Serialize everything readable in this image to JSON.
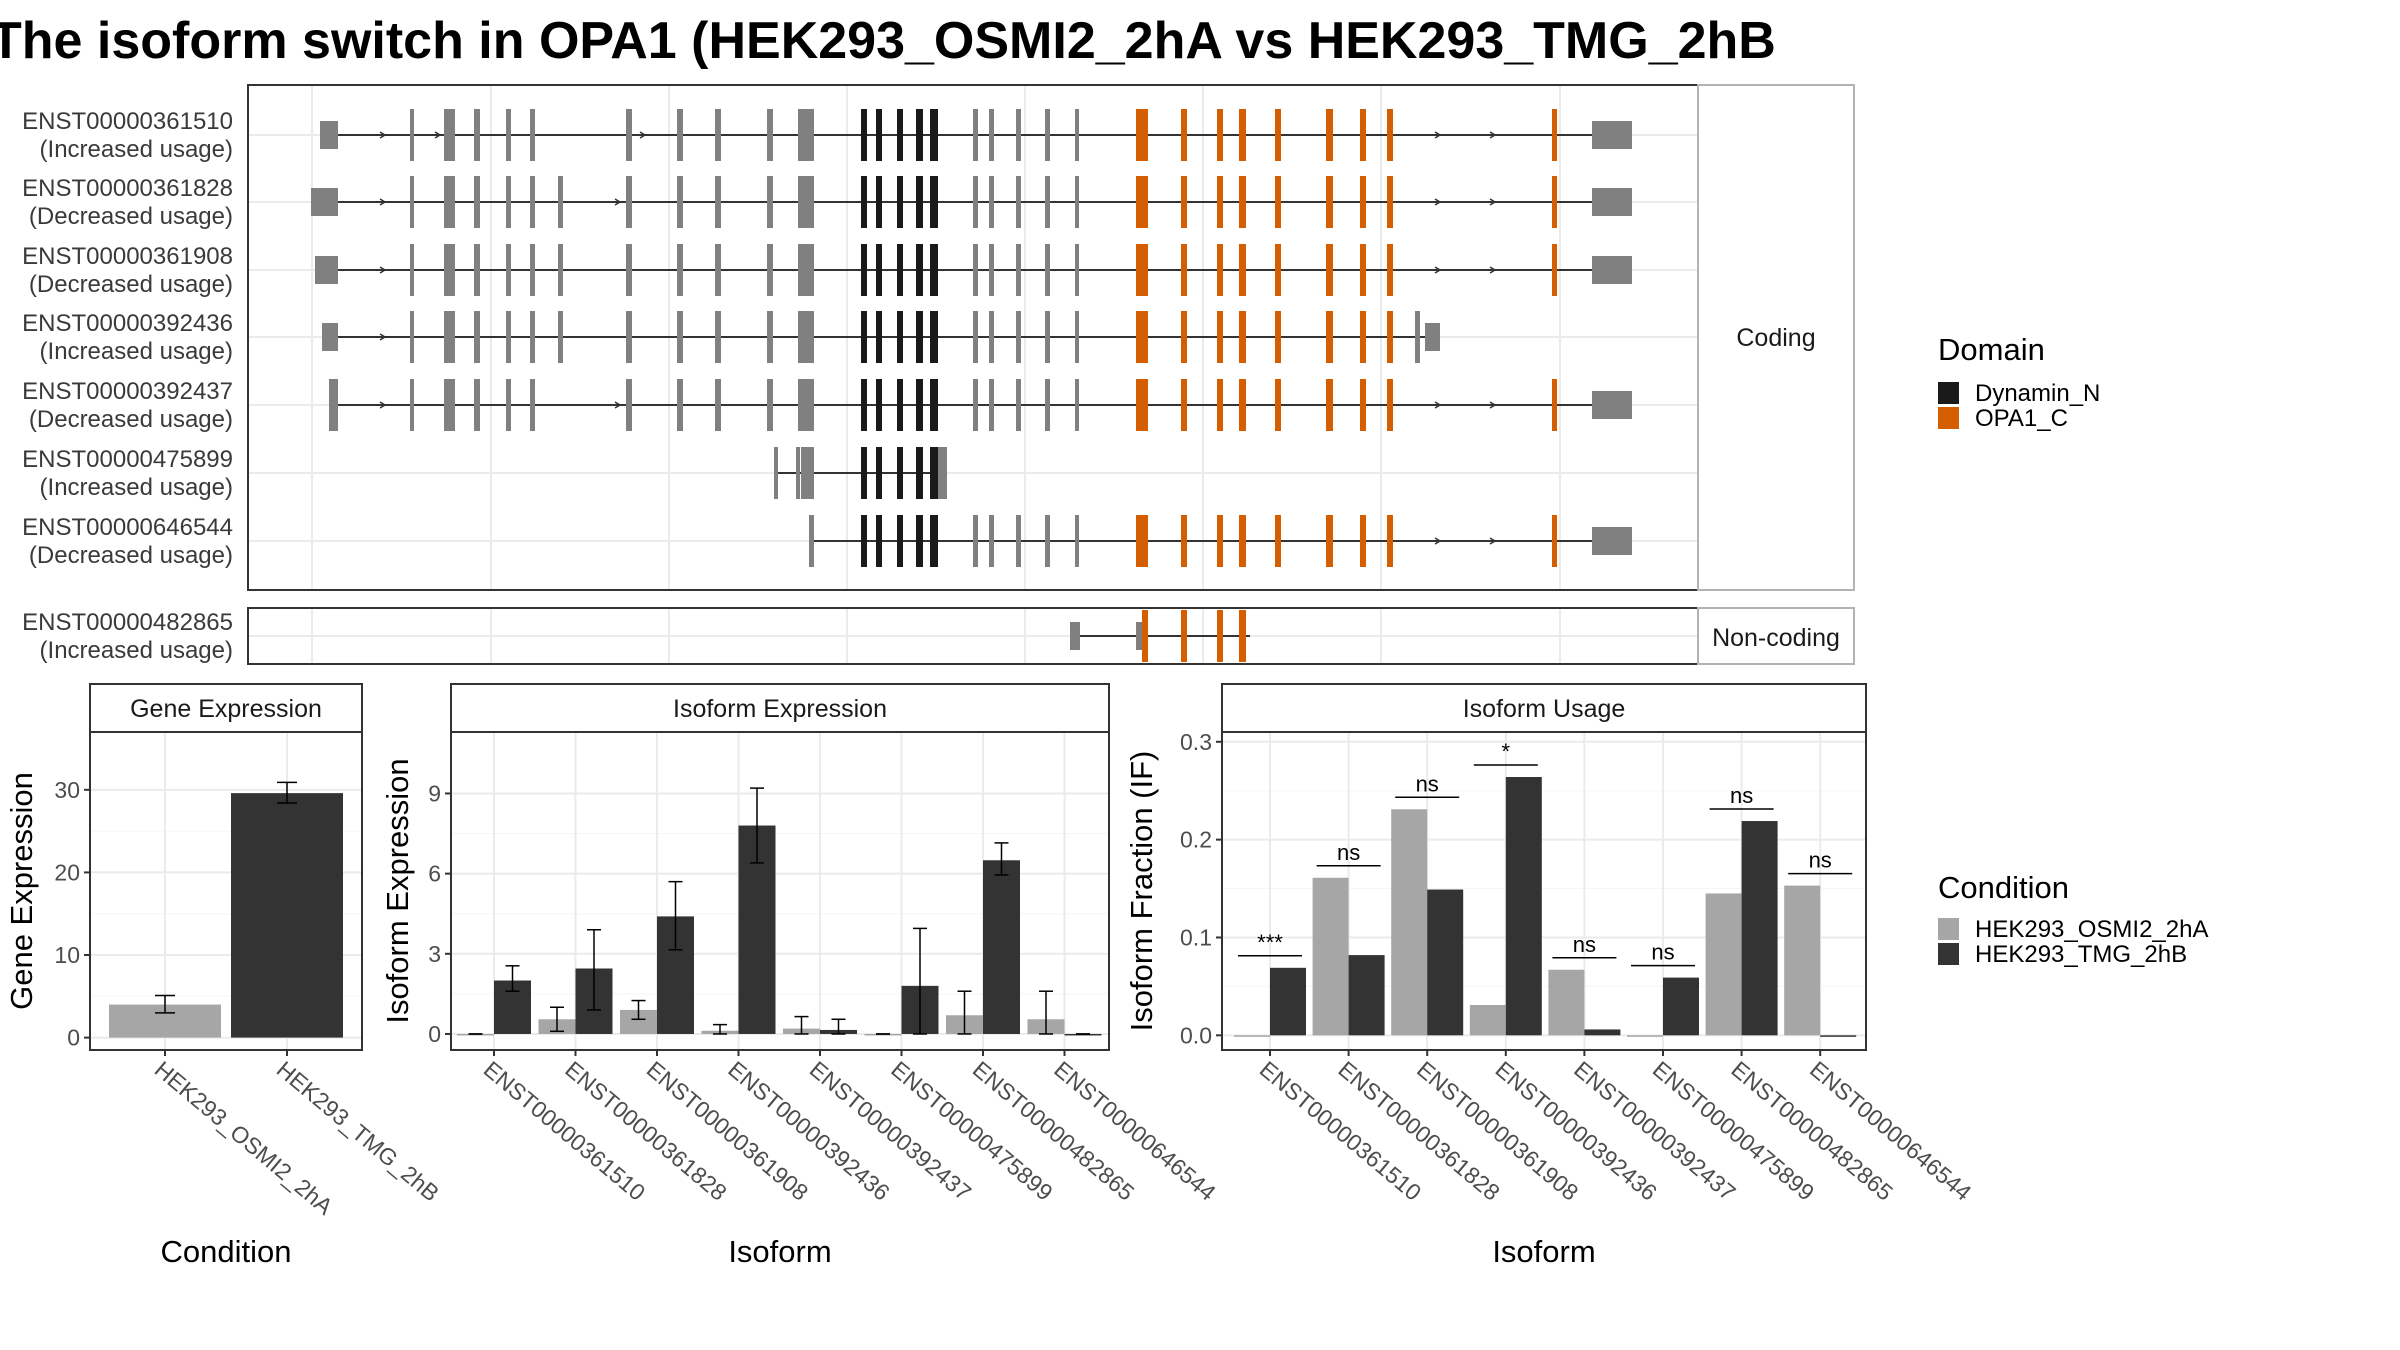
{
  "chart_data": [
    {
      "type": "gene-structure",
      "title": "The isoform switch in OPA1 (HEK293_OSMI2_2hA vs HEK293_TMG_2hB",
      "facets": [
        "Coding",
        "Non-coding"
      ],
      "transcripts": [
        {
          "id": "ENST00000361510",
          "usage": "(Increased usage)",
          "category": "Coding"
        },
        {
          "id": "ENST00000361828",
          "usage": "(Decreased usage)",
          "category": "Coding"
        },
        {
          "id": "ENST00000361908",
          "usage": "(Decreased usage)",
          "category": "Coding"
        },
        {
          "id": "ENST00000392436",
          "usage": "(Increased usage)",
          "category": "Coding"
        },
        {
          "id": "ENST00000392437",
          "usage": "(Decreased usage)",
          "category": "Coding"
        },
        {
          "id": "ENST00000475899",
          "usage": "(Increased usage)",
          "category": "Coding"
        },
        {
          "id": "ENST00000646544",
          "usage": "(Decreased usage)",
          "category": "Coding"
        },
        {
          "id": "ENST00000482865",
          "usage": "(Increased usage)",
          "category": "Non-coding"
        }
      ],
      "legend": {
        "title": "Domain",
        "items": [
          {
            "label": "Dynamin_N",
            "color": "#1a1a1a"
          },
          {
            "label": "OPA1_C",
            "color": "#d55e00"
          }
        ],
        "noncoding_color": "#808080"
      }
    },
    {
      "type": "bar",
      "title": "Gene Expression",
      "xlabel": "Condition",
      "ylabel": "Gene Expression",
      "categories": [
        "HEK293_OSMI2_2hA",
        "HEK293_TMG_2hB"
      ],
      "values": [
        4.0,
        29.6
      ],
      "errors": [
        [
          3.0,
          5.1
        ],
        [
          28.4,
          30.9
        ]
      ],
      "yticks": [
        0,
        10,
        20,
        30
      ],
      "ylim": [
        -1.5,
        37
      ]
    },
    {
      "type": "bar",
      "title": "Isoform Expression",
      "xlabel": "Isoform",
      "ylabel": "Isoform Expression",
      "categories": [
        "ENST00000361510",
        "ENST00000361828",
        "ENST00000361908",
        "ENST00000392436",
        "ENST00000392437",
        "ENST00000475899",
        "ENST00000482865",
        "ENST00000646544"
      ],
      "series": [
        {
          "name": "HEK293_OSMI2_2hA",
          "values": [
            0.0,
            0.55,
            0.9,
            0.12,
            0.2,
            0.0,
            0.7,
            0.55
          ],
          "errors": [
            [
              0.0,
              0.0
            ],
            [
              0.1,
              1.0
            ],
            [
              0.55,
              1.25
            ],
            [
              0.0,
              0.35
            ],
            [
              0.0,
              0.65
            ],
            [
              0.0,
              0.0
            ],
            [
              0.0,
              1.6
            ],
            [
              0.0,
              1.6
            ]
          ]
        },
        {
          "name": "HEK293_TMG_2hB",
          "values": [
            2.0,
            2.45,
            4.4,
            7.8,
            0.15,
            1.8,
            6.5,
            0.0
          ],
          "errors": [
            [
              1.6,
              2.55
            ],
            [
              0.9,
              3.9
            ],
            [
              3.15,
              5.7
            ],
            [
              6.4,
              9.2
            ],
            [
              0.0,
              0.55
            ],
            [
              0.0,
              3.95
            ],
            [
              5.95,
              7.15
            ],
            [
              0.0,
              0.0
            ]
          ]
        }
      ],
      "yticks": [
        0,
        3,
        6,
        9
      ],
      "ylim": [
        -0.6,
        11.3
      ]
    },
    {
      "type": "bar",
      "title": "Isoform Usage",
      "xlabel": "Isoform",
      "ylabel": "Isoform Fraction (IF)",
      "categories": [
        "ENST00000361510",
        "ENST00000361828",
        "ENST00000361908",
        "ENST00000392436",
        "ENST00000392437",
        "ENST00000475899",
        "ENST00000482865",
        "ENST00000646544"
      ],
      "series": [
        {
          "name": "HEK293_OSMI2_2hA",
          "values": [
            0.0,
            0.161,
            0.231,
            0.031,
            0.067,
            0.0,
            0.145,
            0.153
          ]
        },
        {
          "name": "HEK293_TMG_2hB",
          "values": [
            0.069,
            0.082,
            0.149,
            0.264,
            0.006,
            0.059,
            0.219,
            0.0
          ]
        }
      ],
      "significance": [
        "***",
        "ns",
        "ns",
        "*",
        "ns",
        "ns",
        "ns",
        "ns"
      ],
      "yticks": [
        0.0,
        0.1,
        0.2,
        0.3
      ],
      "ylim": [
        -0.015,
        0.31
      ],
      "legend": {
        "title": "Condition",
        "items": [
          {
            "label": "HEK293_OSMI2_2hA",
            "color": "#a6a6a6"
          },
          {
            "label": "HEK293_TMG_2hB",
            "color": "#333333"
          }
        ]
      }
    }
  ]
}
